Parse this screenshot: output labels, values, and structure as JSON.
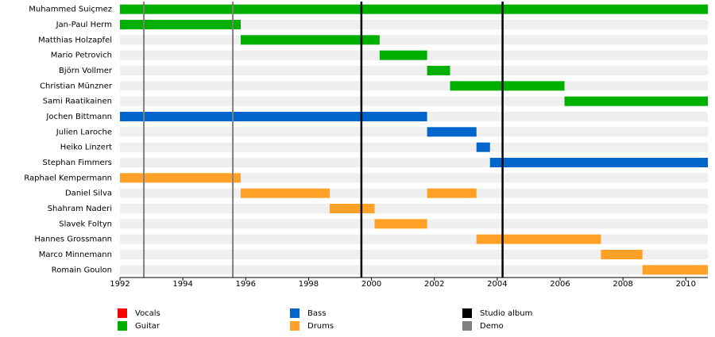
{
  "chart_data": {
    "type": "timeline",
    "categories": [
      "Muhammed Suiçmez",
      "Jan-Paul Herm",
      "Matthias Holzapfel",
      "Mario Petrovich",
      "Björn Vollmer",
      "Christian Münzner",
      "Sami Raatikainen",
      "Jochen Bittmann",
      "Julien Laroche",
      "Heiko Linzert",
      "Stephan Fimmers",
      "Raphael Kempermann",
      "Daniel Silva",
      "Shahram Naderi",
      "Slavek Foltyn",
      "Hannes Grossmann",
      "Marco Minnemann",
      "Romain Goulon"
    ],
    "series": [
      {
        "name": "Vocals",
        "color": "#ff0000",
        "values": [
          [
            [
              1992,
              2010.7
            ]
          ],
          null,
          null,
          null,
          null,
          null,
          null,
          null,
          null,
          null,
          null,
          null,
          null,
          null,
          null,
          null,
          null,
          null
        ]
      },
      {
        "name": "Guitar",
        "color": "#00b000",
        "values": [
          [
            [
              1992,
              2010.7
            ]
          ],
          [
            [
              1992,
              1995.84
            ]
          ],
          [
            [
              1995.84,
              2000.26
            ]
          ],
          [
            [
              2000.26,
              2001.77
            ]
          ],
          [
            [
              2001.77,
              2002.5
            ]
          ],
          [
            [
              2002.5,
              2006.14
            ]
          ],
          [
            [
              2006.14,
              2010.7
            ]
          ],
          null,
          null,
          null,
          null,
          null,
          null,
          null,
          null,
          null,
          null,
          null
        ]
      },
      {
        "name": "Bass",
        "color": "#0066cc",
        "values": [
          null,
          null,
          null,
          null,
          null,
          null,
          null,
          [
            [
              1992,
              2001.77
            ]
          ],
          [
            [
              2001.77,
              2003.34
            ]
          ],
          [
            [
              2003.34,
              2003.77
            ]
          ],
          [
            [
              2003.77,
              2010.7
            ]
          ],
          null,
          null,
          null,
          null,
          null,
          null,
          null
        ]
      },
      {
        "name": "Drums",
        "color": "#ffa126",
        "values": [
          null,
          null,
          null,
          null,
          null,
          null,
          null,
          null,
          null,
          null,
          null,
          [
            [
              1992,
              1995.84
            ]
          ],
          [
            [
              1995.84,
              1998.67
            ],
            [
              2001.77,
              2003.34
            ]
          ],
          [
            [
              1998.67,
              2000.1
            ]
          ],
          [
            [
              2000.1,
              2001.77
            ]
          ],
          [
            [
              2003.34,
              2007.3
            ]
          ],
          [
            [
              2007.3,
              2008.62
            ]
          ],
          [
            [
              2008.62,
              2010.7
            ]
          ]
        ]
      }
    ],
    "events": [
      {
        "name": "Studio album",
        "color": "#000000",
        "x": [
          1999.68,
          2004.17
        ]
      },
      {
        "name": "Demo",
        "color": "#808080",
        "x": [
          1992.76,
          1995.59
        ]
      }
    ],
    "xlim": [
      1992,
      2010.7
    ],
    "xticks": [
      1992,
      1994,
      1996,
      1998,
      2000,
      2002,
      2004,
      2006,
      2008,
      2010
    ]
  }
}
